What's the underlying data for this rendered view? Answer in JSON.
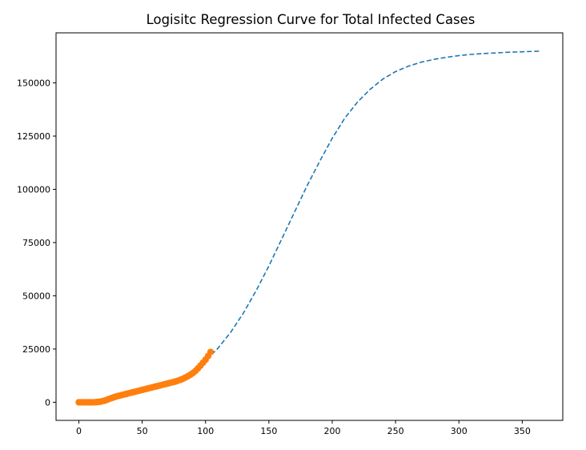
{
  "chart_data": {
    "type": "line",
    "title": "Logisitc Regression Curve for Total Infected Cases",
    "xlabel": "",
    "ylabel": "",
    "xlim": [
      -18,
      382
    ],
    "ylim": [
      -8500,
      173500
    ],
    "xticks": [
      0,
      50,
      100,
      150,
      200,
      250,
      300,
      350
    ],
    "yticks": [
      0,
      25000,
      50000,
      75000,
      100000,
      125000,
      150000
    ],
    "grid": false,
    "series": [
      {
        "style": "dashed-line",
        "color": "#1f77b4",
        "x": [
          0,
          10,
          20,
          30,
          40,
          50,
          60,
          70,
          80,
          90,
          100,
          110,
          120,
          130,
          140,
          150,
          160,
          170,
          180,
          190,
          200,
          210,
          220,
          230,
          240,
          250,
          260,
          270,
          280,
          290,
          300,
          310,
          320,
          330,
          340,
          350,
          364
        ],
        "y": [
          600,
          1000,
          1600,
          2400,
          3400,
          4700,
          6400,
          8600,
          11400,
          15000,
          19500,
          25500,
          33000,
          42000,
          52500,
          64000,
          76500,
          89000,
          101500,
          113000,
          124000,
          133500,
          141000,
          147000,
          151800,
          155300,
          157800,
          159700,
          161000,
          162000,
          162800,
          163400,
          163800,
          164100,
          164400,
          164600,
          164900
        ]
      },
      {
        "style": "markers",
        "color": "#ff7f0e",
        "x": [
          0,
          2,
          4,
          6,
          8,
          10,
          12,
          14,
          16,
          18,
          20,
          22,
          24,
          26,
          28,
          30,
          32,
          34,
          36,
          38,
          40,
          42,
          44,
          46,
          48,
          50,
          52,
          54,
          56,
          58,
          60,
          62,
          64,
          66,
          68,
          70,
          72,
          74,
          76,
          78,
          80,
          82,
          84,
          86,
          88,
          90,
          92,
          94,
          96,
          98,
          100,
          102,
          104
        ],
        "y": [
          0,
          0,
          0,
          0,
          0,
          0,
          0,
          100,
          200,
          400,
          700,
          1100,
          1600,
          2000,
          2400,
          2800,
          3100,
          3400,
          3700,
          4000,
          4300,
          4600,
          4900,
          5200,
          5500,
          5800,
          6100,
          6400,
          6700,
          7000,
          7300,
          7600,
          7900,
          8200,
          8500,
          8800,
          9100,
          9400,
          9700,
          10100,
          10500,
          11000,
          11600,
          12200,
          12900,
          13700,
          14700,
          15900,
          17200,
          18600,
          20000,
          21700,
          23600
        ]
      }
    ]
  }
}
